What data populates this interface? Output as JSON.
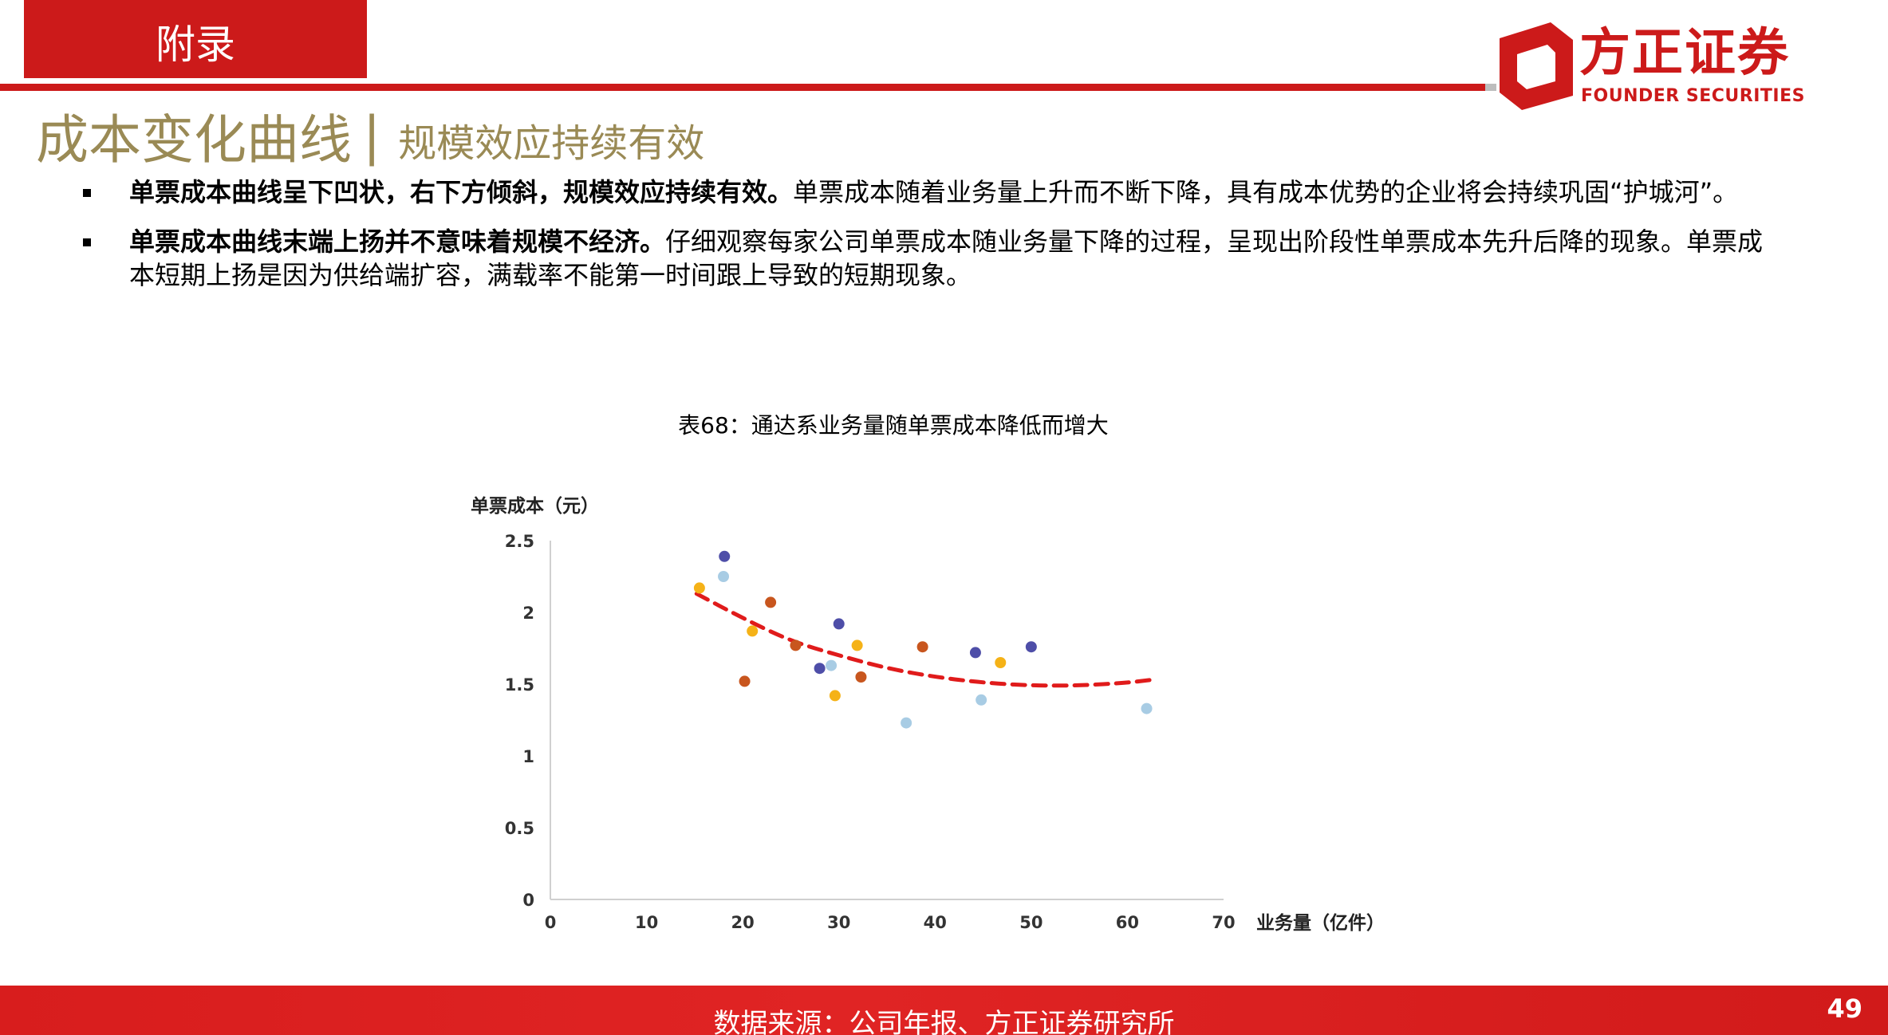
{
  "header": {
    "section_tab": "附录",
    "logo_cn": "方正证券",
    "logo_en": "FOUNDER SECURITIES"
  },
  "title": {
    "main": "成本变化曲线",
    "separator": "|",
    "sub": "规模效应持续有效"
  },
  "bullets": [
    {
      "lead": "单票成本曲线呈下凹状，右下方倾斜，规模效应持续有效。",
      "text": "单票成本随着业务量上升而不断下降，具有成本优势的企业将会持续巩固“护城河”。"
    },
    {
      "lead": "单票成本曲线末端上扬并不意味着规模不经济。",
      "text": "仔细观察每家公司单票成本随业务量下降的过程，呈现出阶段性单票成本先升后降的现象。单票成本短期上扬是因为供给端扩容，满载率不能第一时间跟上导致的短期现象。"
    }
  ],
  "chart_caption": "表68：通达系业务量随单票成本降低而增大",
  "chart_data": {
    "type": "scatter",
    "title": "",
    "xlabel": "业务量（亿件）",
    "ylabel": "单票成本（元）",
    "xlim": [
      0,
      70
    ],
    "ylim": [
      0,
      2.5
    ],
    "xticks": [
      "0",
      "10",
      "20",
      "30",
      "40",
      "50",
      "60",
      "70"
    ],
    "yticks": [
      "0",
      "0.5",
      "1",
      "1.5",
      "2",
      "2.5"
    ],
    "grid": false,
    "legend": "none",
    "series": [
      {
        "color": "#4e4ea8",
        "points": [
          [
            18.1,
            2.39
          ],
          [
            28.0,
            1.61
          ],
          [
            30.0,
            1.92
          ],
          [
            44.2,
            1.72
          ],
          [
            50.0,
            1.76
          ]
        ]
      },
      {
        "color": "#a8cce4",
        "points": [
          [
            18.0,
            2.25
          ],
          [
            29.2,
            1.63
          ],
          [
            37.0,
            1.23
          ],
          [
            44.8,
            1.39
          ],
          [
            62.0,
            1.33
          ]
        ]
      },
      {
        "color": "#c8561e",
        "points": [
          [
            20.2,
            1.52
          ],
          [
            22.9,
            2.07
          ],
          [
            25.5,
            1.77
          ],
          [
            32.3,
            1.55
          ],
          [
            38.7,
            1.76
          ]
        ]
      },
      {
        "color": "#f5b217",
        "points": [
          [
            15.5,
            2.17
          ],
          [
            21.0,
            1.87
          ],
          [
            29.6,
            1.42
          ],
          [
            31.9,
            1.77
          ],
          [
            46.8,
            1.65
          ]
        ]
      }
    ],
    "trend": {
      "color": "#e01b1b",
      "style": "dashed",
      "points": [
        [
          15.2,
          2.13
        ],
        [
          20,
          1.96
        ],
        [
          25,
          1.8
        ],
        [
          30,
          1.7
        ],
        [
          35,
          1.61
        ],
        [
          40,
          1.55
        ],
        [
          45,
          1.51
        ],
        [
          50,
          1.49
        ],
        [
          55,
          1.49
        ],
        [
          60,
          1.51
        ],
        [
          62.5,
          1.53
        ]
      ]
    }
  },
  "footer": {
    "source": "数据来源：公司年报、方正证券研究所",
    "page_number": "49"
  },
  "colors": {
    "brand_red": "#cc1a1a",
    "title_gold": "#9a8a55"
  }
}
